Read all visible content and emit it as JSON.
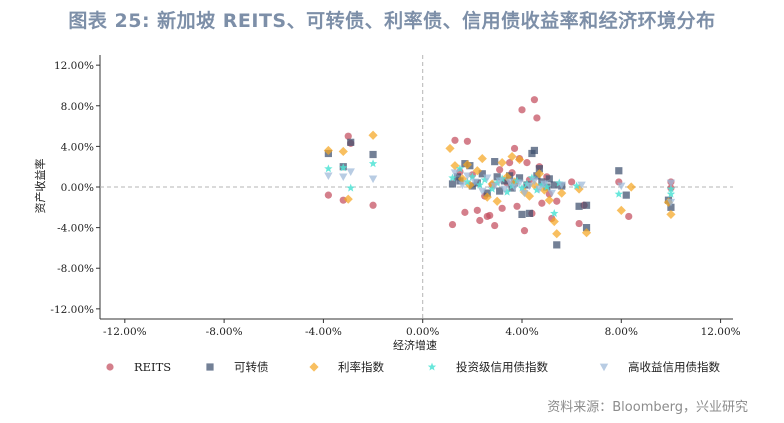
{
  "title": "图表 25: 新加坡 REITS、可转债、利率债、信用债收益率和经济环境分布",
  "source": "资料来源：Bloomberg，兴业研究",
  "colors": {
    "REITS": "#c44e5e",
    "可转债": "#3d4f6e",
    "利率指数": "#f5a623",
    "投资级信用债指数": "#4fe3d5",
    "高收益信用债指数": "#9db8d8"
  },
  "chart_data": {
    "type": "scatter",
    "title": "",
    "xlabel": "经济增速",
    "ylabel": "资产收益率",
    "xlim": [
      -13,
      12.5
    ],
    "ylim": [
      -13,
      13
    ],
    "xticks": [
      -12,
      -8,
      -4,
      0,
      4,
      8,
      12
    ],
    "yticks": [
      -12,
      -8,
      -4,
      0,
      4,
      8,
      12
    ],
    "tick_labels_x": [
      "-12.00%",
      "-8.00%",
      "-4.00%",
      "0.00%",
      "4.00%",
      "8.00%",
      "12.00%"
    ],
    "tick_labels_y": [
      "-12.00%",
      "-8.00%",
      "-4.00%",
      "0.00%",
      "4.00%",
      "8.00%",
      "12.00%"
    ],
    "legend_position": "bottom",
    "series": [
      {
        "name": "REITS",
        "marker": "circle",
        "points": [
          [
            -3.8,
            -0.8
          ],
          [
            -3.2,
            -1.3
          ],
          [
            -3.0,
            5.0
          ],
          [
            -2.9,
            4.3
          ],
          [
            -2.0,
            -1.8
          ],
          [
            1.2,
            -3.7
          ],
          [
            1.3,
            4.6
          ],
          [
            1.5,
            1.5
          ],
          [
            1.8,
            4.5
          ],
          [
            1.7,
            -2.5
          ],
          [
            2.0,
            1.2
          ],
          [
            2.2,
            -2.3
          ],
          [
            2.3,
            -3.3
          ],
          [
            2.5,
            -0.9
          ],
          [
            2.6,
            -2.9
          ],
          [
            2.7,
            -2.8
          ],
          [
            2.8,
            0.2
          ],
          [
            2.9,
            -3.8
          ],
          [
            3.1,
            1.7
          ],
          [
            3.2,
            -2.1
          ],
          [
            3.4,
            0.4
          ],
          [
            3.5,
            2.4
          ],
          [
            3.6,
            1.4
          ],
          [
            3.7,
            3.8
          ],
          [
            3.8,
            -1.9
          ],
          [
            3.9,
            2.8
          ],
          [
            4.0,
            7.6
          ],
          [
            4.1,
            -4.3
          ],
          [
            4.3,
            0.7
          ],
          [
            4.2,
            2.4
          ],
          [
            4.4,
            -2.6
          ],
          [
            4.5,
            8.6
          ],
          [
            4.6,
            6.8
          ],
          [
            4.7,
            2.0
          ],
          [
            4.8,
            -1.6
          ],
          [
            5.0,
            1.0
          ],
          [
            5.1,
            -0.7
          ],
          [
            5.2,
            -3.1
          ],
          [
            5.4,
            -1.4
          ],
          [
            6.0,
            0.5
          ],
          [
            6.3,
            -3.6
          ],
          [
            6.5,
            -1.8
          ],
          [
            7.9,
            0.5
          ],
          [
            8.3,
            -2.9
          ],
          [
            10.0,
            -0.1
          ],
          [
            10.0,
            0.5
          ]
        ]
      },
      {
        "name": "可转债",
        "marker": "square",
        "points": [
          [
            -3.8,
            3.3
          ],
          [
            -3.2,
            2.0
          ],
          [
            -2.9,
            4.4
          ],
          [
            -2.0,
            3.2
          ],
          [
            1.2,
            0.3
          ],
          [
            1.4,
            1.0
          ],
          [
            1.5,
            0.6
          ],
          [
            1.7,
            2.3
          ],
          [
            1.9,
            2.1
          ],
          [
            2.0,
            0.1
          ],
          [
            2.2,
            0.4
          ],
          [
            2.4,
            1.3
          ],
          [
            2.6,
            -0.6
          ],
          [
            2.9,
            2.5
          ],
          [
            3.0,
            1.0
          ],
          [
            3.1,
            -0.4
          ],
          [
            3.3,
            0.6
          ],
          [
            3.5,
            1.1
          ],
          [
            3.6,
            -0.1
          ],
          [
            3.7,
            0.4
          ],
          [
            3.9,
            0.9
          ],
          [
            4.0,
            -2.7
          ],
          [
            4.2,
            0.2
          ],
          [
            4.3,
            -2.6
          ],
          [
            4.4,
            3.3
          ],
          [
            4.5,
            3.6
          ],
          [
            4.6,
            1.1
          ],
          [
            4.7,
            1.8
          ],
          [
            4.8,
            0.5
          ],
          [
            5.0,
            0.0
          ],
          [
            5.1,
            0.8
          ],
          [
            5.3,
            0.2
          ],
          [
            5.4,
            -5.7
          ],
          [
            5.6,
            0.1
          ],
          [
            6.3,
            -1.9
          ],
          [
            6.6,
            -1.8
          ],
          [
            6.6,
            -4.0
          ],
          [
            7.9,
            1.6
          ],
          [
            8.2,
            -0.8
          ],
          [
            9.9,
            -1.3
          ],
          [
            10.0,
            -2.0
          ]
        ]
      },
      {
        "name": "利率指数",
        "marker": "diamond",
        "points": [
          [
            -3.8,
            3.6
          ],
          [
            -3.2,
            3.5
          ],
          [
            -3.0,
            -1.2
          ],
          [
            -2.0,
            5.1
          ],
          [
            1.1,
            3.8
          ],
          [
            1.3,
            2.1
          ],
          [
            1.6,
            0.8
          ],
          [
            1.8,
            2.2
          ],
          [
            1.9,
            0.2
          ],
          [
            2.2,
            1.6
          ],
          [
            2.4,
            2.8
          ],
          [
            2.6,
            -1.0
          ],
          [
            2.8,
            0.3
          ],
          [
            3.0,
            -1.4
          ],
          [
            3.2,
            2.4
          ],
          [
            3.4,
            1.0
          ],
          [
            3.6,
            3.0
          ],
          [
            3.7,
            0.5
          ],
          [
            3.9,
            2.7
          ],
          [
            4.1,
            -0.5
          ],
          [
            4.3,
            -0.9
          ],
          [
            4.5,
            0.2
          ],
          [
            4.7,
            1.3
          ],
          [
            4.9,
            -0.3
          ],
          [
            5.1,
            -1.3
          ],
          [
            5.3,
            -3.4
          ],
          [
            5.4,
            -4.6
          ],
          [
            5.6,
            -0.6
          ],
          [
            6.3,
            -0.2
          ],
          [
            6.6,
            -4.5
          ],
          [
            8.0,
            -2.3
          ],
          [
            8.4,
            0.0
          ],
          [
            9.9,
            -1.5
          ],
          [
            10.0,
            -2.7
          ]
        ]
      },
      {
        "name": "投资级信用债指数",
        "marker": "star",
        "points": [
          [
            -3.8,
            1.8
          ],
          [
            -3.2,
            1.9
          ],
          [
            -2.9,
            -0.1
          ],
          [
            -2.0,
            2.3
          ],
          [
            1.2,
            0.9
          ],
          [
            1.5,
            1.8
          ],
          [
            1.8,
            0.5
          ],
          [
            2.0,
            1.0
          ],
          [
            2.3,
            0.2
          ],
          [
            2.5,
            0.7
          ],
          [
            2.8,
            -0.2
          ],
          [
            3.0,
            0.4
          ],
          [
            3.2,
            0.8
          ],
          [
            3.4,
            -0.5
          ],
          [
            3.6,
            0.1
          ],
          [
            3.8,
            0.6
          ],
          [
            4.0,
            -0.1
          ],
          [
            4.2,
            0.3
          ],
          [
            4.4,
            0.9
          ],
          [
            4.6,
            -0.3
          ],
          [
            4.8,
            0.2
          ],
          [
            5.0,
            0.0
          ],
          [
            5.3,
            -2.6
          ],
          [
            5.5,
            0.4
          ],
          [
            6.2,
            0.1
          ],
          [
            7.9,
            -0.7
          ],
          [
            10.0,
            -0.7
          ],
          [
            10.0,
            -0.2
          ]
        ]
      },
      {
        "name": "高收益信用债指数",
        "marker": "triangle-down",
        "points": [
          [
            -3.8,
            1.1
          ],
          [
            -3.2,
            1.0
          ],
          [
            -2.9,
            1.5
          ],
          [
            -2.0,
            0.8
          ],
          [
            1.3,
            1.4
          ],
          [
            1.6,
            0.2
          ],
          [
            1.8,
            1.1
          ],
          [
            2.1,
            0.5
          ],
          [
            2.4,
            -0.4
          ],
          [
            2.6,
            0.9
          ],
          [
            2.9,
            0.1
          ],
          [
            3.1,
            0.6
          ],
          [
            3.3,
            -0.2
          ],
          [
            3.5,
            0.5
          ],
          [
            3.7,
            0.0
          ],
          [
            3.9,
            0.4
          ],
          [
            4.1,
            -0.6
          ],
          [
            4.3,
            0.1
          ],
          [
            4.5,
            0.6
          ],
          [
            4.7,
            -0.2
          ],
          [
            4.9,
            0.3
          ],
          [
            5.2,
            -0.6
          ],
          [
            5.6,
            0.2
          ],
          [
            6.4,
            0.2
          ],
          [
            8.0,
            0.1
          ],
          [
            10.0,
            0.4
          ],
          [
            10.0,
            -1.5
          ]
        ]
      }
    ]
  }
}
